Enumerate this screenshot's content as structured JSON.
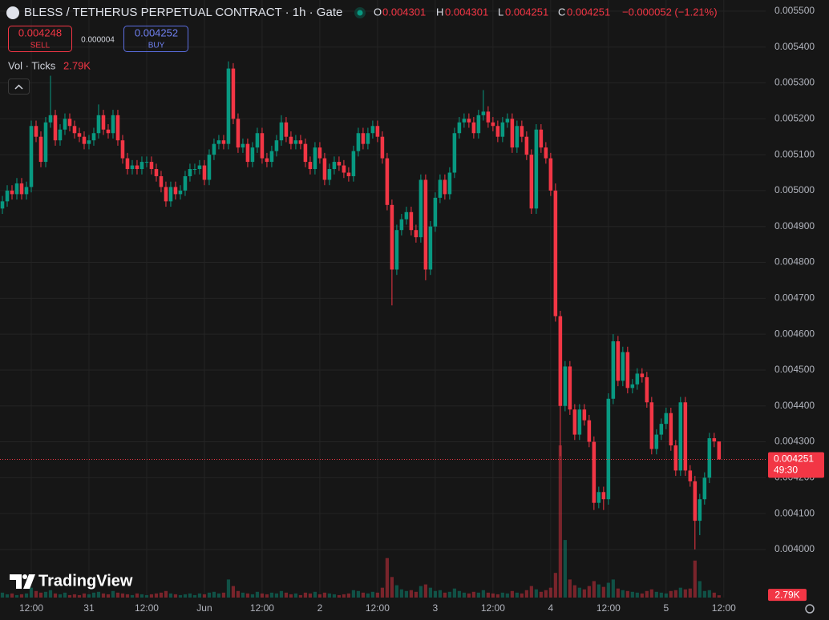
{
  "chart_data": {
    "type": "candlestick",
    "title": "BLESS / TETHERUS PERPETUAL CONTRACT · 1h · Gate",
    "ohlc_letters": [
      "O",
      "H",
      "L",
      "C"
    ],
    "change_label": "−0.000052 (−1.21%)",
    "sell": {
      "price": 0.004248,
      "label": "SELL"
    },
    "spread": 4e-06,
    "buy": {
      "price": 0.004252,
      "label": "BUY"
    },
    "volume_title": "Vol · Ticks",
    "volume_last_label": "2.79K",
    "countdown": "49:30",
    "brand": "TradingView",
    "up_color": "#089981",
    "down_color": "#f23645",
    "grid": true,
    "ylim": [
      0.003866,
      0.005531
    ],
    "yticks": [
      {
        "value": 0.004,
        "label": "0.004000"
      },
      {
        "value": 0.0041,
        "label": "0.004100"
      },
      {
        "value": 0.0042,
        "label": "0.004200"
      },
      {
        "value": 0.0043,
        "label": "0.004300"
      },
      {
        "value": 0.0044,
        "label": "0.004400"
      },
      {
        "value": 0.0045,
        "label": "0.004500"
      },
      {
        "value": 0.0046,
        "label": "0.004600"
      },
      {
        "value": 0.0047,
        "label": "0.004700"
      },
      {
        "value": 0.0048,
        "label": "0.004800"
      },
      {
        "value": 0.0049,
        "label": "0.004900"
      },
      {
        "value": 0.005,
        "label": "0.005000"
      },
      {
        "value": 0.0051,
        "label": "0.005100"
      },
      {
        "value": 0.0052,
        "label": "0.005200"
      },
      {
        "value": 0.0053,
        "label": "0.005300"
      },
      {
        "value": 0.0054,
        "label": "0.005400"
      },
      {
        "value": 0.0055,
        "label": "0.005500"
      }
    ],
    "xlim": [
      -0.5,
      158.7
    ],
    "xticks": [
      {
        "value": 6,
        "label": "12:00"
      },
      {
        "value": 18,
        "label": "31"
      },
      {
        "value": 30,
        "label": "12:00"
      },
      {
        "value": 42,
        "label": "Jun"
      },
      {
        "value": 54,
        "label": "12:00"
      },
      {
        "value": 66,
        "label": "2"
      },
      {
        "value": 78,
        "label": "12:00"
      },
      {
        "value": 90,
        "label": "3"
      },
      {
        "value": 102,
        "label": "12:00"
      },
      {
        "value": 114,
        "label": "4"
      },
      {
        "value": 126,
        "label": "12:00"
      },
      {
        "value": 138,
        "label": "5"
      },
      {
        "value": 150,
        "label": "12:00"
      }
    ],
    "x": [
      0,
      1,
      2,
      3,
      4,
      5,
      6,
      7,
      8,
      9,
      10,
      11,
      12,
      13,
      14,
      15,
      16,
      17,
      18,
      19,
      20,
      21,
      22,
      23,
      24,
      25,
      26,
      27,
      28,
      29,
      30,
      31,
      32,
      33,
      34,
      35,
      36,
      37,
      38,
      39,
      40,
      41,
      42,
      43,
      44,
      45,
      46,
      47,
      48,
      49,
      50,
      51,
      52,
      53,
      54,
      55,
      56,
      57,
      58,
      59,
      60,
      61,
      62,
      63,
      64,
      65,
      66,
      67,
      68,
      69,
      70,
      71,
      72,
      73,
      74,
      75,
      76,
      77,
      78,
      79,
      80,
      81,
      82,
      83,
      84,
      85,
      86,
      87,
      88,
      89,
      90,
      91,
      92,
      93,
      94,
      95,
      96,
      97,
      98,
      99,
      100,
      101,
      102,
      103,
      104,
      105,
      106,
      107,
      108,
      109,
      110,
      111,
      112,
      113,
      114,
      115,
      116,
      117,
      118,
      119,
      120,
      121,
      122,
      123,
      124,
      125,
      126,
      127,
      128,
      129,
      130,
      131,
      132,
      133,
      134,
      135,
      136,
      137,
      138,
      139,
      140,
      141,
      142,
      143,
      144,
      145,
      146,
      147,
      148,
      149
    ],
    "open": [
      0.00495,
      0.00497,
      0.005,
      0.00499,
      0.00502,
      0.00499,
      0.00501,
      0.00518,
      0.00515,
      0.00508,
      0.00519,
      0.00521,
      0.00514,
      0.00517,
      0.0052,
      0.00518,
      0.00516,
      0.00515,
      0.00513,
      0.00514,
      0.00516,
      0.00521,
      0.00517,
      0.00516,
      0.00521,
      0.00514,
      0.00509,
      0.00506,
      0.00507,
      0.00506,
      0.00508,
      0.00508,
      0.00506,
      0.00504,
      0.00501,
      0.00497,
      0.00501,
      0.00499,
      0.005,
      0.00504,
      0.00506,
      0.00506,
      0.00507,
      0.00503,
      0.0051,
      0.00513,
      0.00514,
      0.00513,
      0.00534,
      0.0052,
      0.00512,
      0.00513,
      0.00508,
      0.00512,
      0.00516,
      0.00509,
      0.00508,
      0.00511,
      0.00514,
      0.00519,
      0.00515,
      0.00513,
      0.00514,
      0.00513,
      0.00508,
      0.00506,
      0.00512,
      0.00509,
      0.00503,
      0.00506,
      0.00508,
      0.00507,
      0.00505,
      0.00504,
      0.00511,
      0.00516,
      0.00513,
      0.00516,
      0.00518,
      0.00515,
      0.00509,
      0.00496,
      0.00478,
      0.00489,
      0.00492,
      0.00494,
      0.00489,
      0.00487,
      0.00503,
      0.00478,
      0.0049,
      0.00498,
      0.00503,
      0.00499,
      0.00505,
      0.00516,
      0.00519,
      0.0052,
      0.00519,
      0.00516,
      0.00521,
      0.00522,
      0.00519,
      0.00518,
      0.00515,
      0.00519,
      0.0052,
      0.00512,
      0.00518,
      0.00515,
      0.0051,
      0.00495,
      0.00517,
      0.00512,
      0.00509,
      0.005,
      0.00465,
      0.0044,
      0.00451,
      0.00439,
      0.00432,
      0.00439,
      0.00436,
      0.0043,
      0.00413,
      0.00416,
      0.00414,
      0.00442,
      0.00458,
      0.00447,
      0.00455,
      0.00445,
      0.00446,
      0.00449,
      0.00448,
      0.00441,
      0.00428,
      0.00432,
      0.00435,
      0.00438,
      0.00429,
      0.00422,
      0.00441,
      0.00422,
      0.00419,
      0.00408,
      0.00414,
      0.0042,
      0.00431,
      0.004301
    ],
    "high": [
      0.004985,
      0.005015,
      0.005015,
      0.005035,
      0.005035,
      0.005025,
      0.005195,
      0.005195,
      0.005165,
      0.005205,
      0.00532,
      0.005225,
      0.005185,
      0.005215,
      0.005215,
      0.005195,
      0.005175,
      0.005165,
      0.005155,
      0.005175,
      0.00524,
      0.005225,
      0.005185,
      0.005225,
      0.005225,
      0.005155,
      0.005105,
      0.005085,
      0.005085,
      0.005095,
      0.005095,
      0.005095,
      0.005075,
      0.005055,
      0.005025,
      0.005025,
      0.005025,
      0.005015,
      0.005055,
      0.005075,
      0.005075,
      0.005085,
      0.005085,
      0.005115,
      0.005145,
      0.005155,
      0.005155,
      0.00536,
      0.005355,
      0.005215,
      0.005145,
      0.005145,
      0.005135,
      0.005175,
      0.005175,
      0.005105,
      0.005125,
      0.005155,
      0.00521,
      0.005205,
      0.005165,
      0.005155,
      0.005155,
      0.005145,
      0.005095,
      0.005135,
      0.005135,
      0.005105,
      0.005075,
      0.005095,
      0.005095,
      0.005085,
      0.005065,
      0.005125,
      0.005175,
      0.005175,
      0.005175,
      0.005195,
      0.005195,
      0.005165,
      0.005105,
      0.004975,
      0.004905,
      0.004935,
      0.004955,
      0.004955,
      0.004905,
      0.005045,
      0.005045,
      0.004915,
      0.004995,
      0.005045,
      0.005045,
      0.005065,
      0.005175,
      0.005205,
      0.005215,
      0.005215,
      0.005205,
      0.005225,
      0.00528,
      0.005235,
      0.005205,
      0.005195,
      0.005205,
      0.005215,
      0.005215,
      0.005195,
      0.005195,
      0.005165,
      0.005115,
      0.005185,
      0.005185,
      0.005135,
      0.005105,
      0.00502,
      0.004665,
      0.004525,
      0.004525,
      0.004405,
      0.004405,
      0.004405,
      0.004375,
      0.004315,
      0.004175,
      0.004175,
      0.004435,
      0.0046,
      0.004595,
      0.004565,
      0.004565,
      0.004475,
      0.004505,
      0.004505,
      0.004495,
      0.004425,
      0.004335,
      0.004365,
      0.004395,
      0.004395,
      0.004305,
      0.004425,
      0.004425,
      0.004235,
      0.004205,
      0.004155,
      0.004215,
      0.004325,
      0.004325,
      0.004301
    ],
    "low": [
      0.004935,
      0.004955,
      0.004975,
      0.004975,
      0.004975,
      0.004975,
      0.004995,
      0.005135,
      0.005065,
      0.005065,
      0.005175,
      0.005125,
      0.005125,
      0.005155,
      0.005165,
      0.005145,
      0.005135,
      0.005115,
      0.005115,
      0.005125,
      0.005145,
      0.005155,
      0.005145,
      0.005145,
      0.005125,
      0.005075,
      0.005045,
      0.005045,
      0.005045,
      0.005045,
      0.005065,
      0.005045,
      0.005025,
      0.004995,
      0.004955,
      0.004955,
      0.004975,
      0.004975,
      0.004985,
      0.005025,
      0.005045,
      0.005045,
      0.005015,
      0.005015,
      0.005085,
      0.005115,
      0.005115,
      0.005115,
      0.005185,
      0.005105,
      0.005105,
      0.005065,
      0.005065,
      0.005105,
      0.005075,
      0.005065,
      0.005065,
      0.005095,
      0.005125,
      0.005135,
      0.005115,
      0.005115,
      0.005115,
      0.005065,
      0.005045,
      0.005045,
      0.005075,
      0.005015,
      0.005015,
      0.005045,
      0.005055,
      0.005035,
      0.005025,
      0.005025,
      0.005095,
      0.005115,
      0.005115,
      0.005145,
      0.005135,
      0.005075,
      0.004945,
      0.00468,
      0.004765,
      0.004875,
      0.004905,
      0.004875,
      0.004855,
      0.004855,
      0.00475,
      0.004765,
      0.004885,
      0.004965,
      0.004975,
      0.004975,
      0.005035,
      0.005145,
      0.005175,
      0.005175,
      0.005145,
      0.005145,
      0.005195,
      0.005175,
      0.005165,
      0.005135,
      0.005135,
      0.005175,
      0.005105,
      0.005105,
      0.005135,
      0.005085,
      0.004935,
      0.004935,
      0.005105,
      0.005075,
      0.004985,
      0.004635,
      0.00426,
      0.004385,
      0.004375,
      0.004305,
      0.004305,
      0.004345,
      0.004285,
      0.00411,
      0.004115,
      0.00411,
      0.004125,
      0.004405,
      0.004455,
      0.004455,
      0.004435,
      0.004435,
      0.004445,
      0.004465,
      0.004395,
      0.004265,
      0.004265,
      0.004305,
      0.004335,
      0.004275,
      0.004205,
      0.004205,
      0.004205,
      0.004175,
      0.004,
      0.00404,
      0.004125,
      0.004185,
      0.004285,
      0.004251
    ],
    "close": [
      0.00497,
      0.005,
      0.00499,
      0.00502,
      0.00499,
      0.00501,
      0.00518,
      0.00515,
      0.00508,
      0.00519,
      0.00521,
      0.00514,
      0.00517,
      0.0052,
      0.00518,
      0.00516,
      0.00515,
      0.00513,
      0.00514,
      0.00516,
      0.00521,
      0.00517,
      0.00516,
      0.00521,
      0.00514,
      0.00509,
      0.00506,
      0.00507,
      0.00506,
      0.00508,
      0.00508,
      0.00506,
      0.00504,
      0.00501,
      0.00497,
      0.00501,
      0.00499,
      0.005,
      0.00504,
      0.00506,
      0.00506,
      0.00507,
      0.00503,
      0.0051,
      0.00513,
      0.00514,
      0.00513,
      0.00534,
      0.0052,
      0.00512,
      0.00513,
      0.00508,
      0.00512,
      0.00516,
      0.00509,
      0.00508,
      0.00511,
      0.00514,
      0.00519,
      0.00515,
      0.00513,
      0.00514,
      0.00513,
      0.00508,
      0.00506,
      0.00512,
      0.00509,
      0.00503,
      0.00506,
      0.00508,
      0.00507,
      0.00505,
      0.00504,
      0.00511,
      0.00516,
      0.00513,
      0.00516,
      0.00518,
      0.00515,
      0.00509,
      0.00496,
      0.00478,
      0.00489,
      0.00492,
      0.00494,
      0.00489,
      0.00487,
      0.00503,
      0.00478,
      0.0049,
      0.00498,
      0.00503,
      0.00499,
      0.00505,
      0.00516,
      0.00519,
      0.0052,
      0.00519,
      0.00516,
      0.00521,
      0.00522,
      0.00519,
      0.00518,
      0.00515,
      0.00519,
      0.0052,
      0.00512,
      0.00518,
      0.00515,
      0.0051,
      0.00495,
      0.00517,
      0.00512,
      0.00509,
      0.005,
      0.00465,
      0.0044,
      0.00451,
      0.00439,
      0.00432,
      0.00439,
      0.00436,
      0.0043,
      0.00413,
      0.00416,
      0.00414,
      0.00442,
      0.00458,
      0.00447,
      0.00455,
      0.00445,
      0.00446,
      0.00449,
      0.00448,
      0.00441,
      0.00428,
      0.00432,
      0.00435,
      0.00438,
      0.00429,
      0.00422,
      0.00441,
      0.00422,
      0.00419,
      0.00408,
      0.00414,
      0.0042,
      0.00431,
      0.004301,
      0.004251
    ],
    "volume": [
      6000,
      4000,
      5000,
      3000,
      4000,
      5000,
      12000,
      8000,
      6000,
      7000,
      9000,
      5000,
      4000,
      6000,
      3000,
      4000,
      3000,
      5000,
      4000,
      6000,
      7000,
      5000,
      4000,
      8000,
      6000,
      5000,
      4000,
      3000,
      5000,
      4000,
      3000,
      4000,
      5000,
      6000,
      8000,
      5000,
      4000,
      3000,
      4000,
      5000,
      3000,
      5000,
      4000,
      6000,
      7000,
      5000,
      6000,
      22000,
      14000,
      8000,
      6000,
      5000,
      4000,
      7000,
      5000,
      4000,
      6000,
      5000,
      8000,
      6000,
      4000,
      5000,
      3000,
      6000,
      5000,
      7000,
      4000,
      6000,
      5000,
      4000,
      3000,
      4000,
      5000,
      9000,
      8000,
      6000,
      5000,
      7000,
      6000,
      12000,
      48000,
      25000,
      15000,
      10000,
      8000,
      9000,
      7000,
      14000,
      16000,
      12000,
      8000,
      9000,
      6000,
      7000,
      11000,
      8000,
      6000,
      5000,
      7000,
      6000,
      9000,
      6000,
      5000,
      4000,
      6000,
      5000,
      8000,
      6000,
      5000,
      9000,
      14000,
      10000,
      7000,
      9000,
      12000,
      30000,
      185000,
      70000,
      22000,
      15000,
      12000,
      10000,
      14000,
      20000,
      16000,
      13000,
      18000,
      22000,
      11000,
      9000,
      8000,
      7000,
      6000,
      5000,
      8000,
      10000,
      7000,
      6000,
      5000,
      8000,
      9000,
      12000,
      10000,
      11000,
      45000,
      20000,
      8000,
      9000,
      6000,
      2790
    ]
  }
}
